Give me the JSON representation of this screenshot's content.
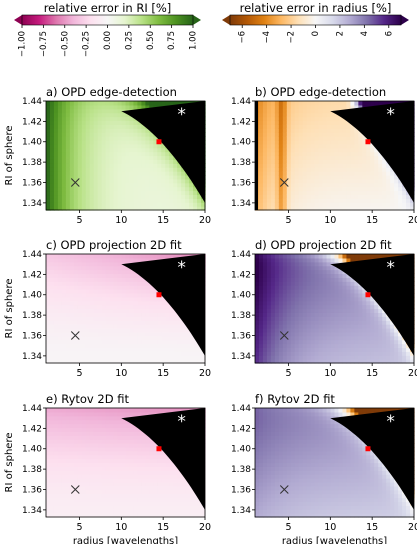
{
  "colorbars": [
    {
      "label": "relative error in RI [%]",
      "ticks": [
        "−1.00",
        "−0.75",
        "−0.50",
        "−0.25",
        "0.00",
        "0.25",
        "0.50",
        "0.75",
        "1.00"
      ],
      "range": [
        -1,
        1
      ],
      "colormap": "PiYG",
      "extend": "both"
    },
    {
      "label": "relative error in radius [%]",
      "ticks": [
        "−6",
        "−4",
        "−2",
        "0",
        "2",
        "4",
        "6"
      ],
      "range": [
        -7,
        7
      ],
      "colormap": "PuOr",
      "extend": "both"
    }
  ],
  "chart_data": [
    {
      "type": "heatmap",
      "title": "a) OPD edge-detection",
      "colormap": "PiYG",
      "xlim": [
        1,
        20
      ],
      "ylim": [
        1.333,
        1.44
      ],
      "xticks": [
        "5",
        "10",
        "15",
        "20"
      ],
      "yticks": [
        "1.34",
        "1.36",
        "1.38",
        "1.40",
        "1.42",
        "1.44"
      ],
      "ylabel": "RI of sphere",
      "xlabel": "",
      "markers": {
        "cross": [
          4.5,
          1.36
        ],
        "square": [
          14.5,
          1.4
        ],
        "star": [
          17.2,
          1.428
        ]
      }
    },
    {
      "type": "heatmap",
      "title": "b) OPD edge-detection",
      "colormap": "PuOr",
      "xlim": [
        1,
        20
      ],
      "ylim": [
        1.333,
        1.44
      ],
      "xticks": [
        "5",
        "10",
        "15",
        "20"
      ],
      "yticks": [
        "1.34",
        "1.36",
        "1.38",
        "1.40",
        "1.42",
        "1.44"
      ],
      "ylabel": "",
      "xlabel": "",
      "markers": {
        "cross": [
          4.5,
          1.36
        ],
        "square": [
          14.5,
          1.4
        ],
        "star": [
          17.2,
          1.428
        ]
      }
    },
    {
      "type": "heatmap",
      "title": "c) OPD projection 2D fit",
      "colormap": "PiYG",
      "xlim": [
        1,
        20
      ],
      "ylim": [
        1.333,
        1.44
      ],
      "xticks": [
        "5",
        "10",
        "15",
        "20"
      ],
      "yticks": [
        "1.34",
        "1.36",
        "1.38",
        "1.40",
        "1.42",
        "1.44"
      ],
      "ylabel": "RI of sphere",
      "xlabel": "",
      "markers": {
        "cross": [
          4.5,
          1.36
        ],
        "square": [
          14.5,
          1.4
        ],
        "star": [
          17.2,
          1.428
        ]
      }
    },
    {
      "type": "heatmap",
      "title": "d) OPD projection 2D fit",
      "colormap": "PuOr",
      "xlim": [
        1,
        20
      ],
      "ylim": [
        1.333,
        1.44
      ],
      "xticks": [
        "5",
        "10",
        "15",
        "20"
      ],
      "yticks": [
        "1.34",
        "1.36",
        "1.38",
        "1.40",
        "1.42",
        "1.44"
      ],
      "ylabel": "",
      "xlabel": "",
      "markers": {
        "cross": [
          4.5,
          1.36
        ],
        "square": [
          14.5,
          1.4
        ],
        "star": [
          17.2,
          1.428
        ]
      }
    },
    {
      "type": "heatmap",
      "title": "e) Rytov 2D fit",
      "colormap": "PiYG",
      "xlim": [
        1,
        20
      ],
      "ylim": [
        1.333,
        1.44
      ],
      "xticks": [
        "5",
        "10",
        "15",
        "20"
      ],
      "yticks": [
        "1.34",
        "1.36",
        "1.38",
        "1.40",
        "1.42",
        "1.44"
      ],
      "ylabel": "RI of sphere",
      "xlabel": "radius [wavelengths]",
      "markers": {
        "cross": [
          4.5,
          1.36
        ],
        "square": [
          14.5,
          1.4
        ],
        "star": [
          17.2,
          1.428
        ]
      }
    },
    {
      "type": "heatmap",
      "title": "f) Rytov 2D fit",
      "colormap": "PuOr",
      "xlim": [
        1,
        20
      ],
      "ylim": [
        1.333,
        1.44
      ],
      "xticks": [
        "5",
        "10",
        "15",
        "20"
      ],
      "yticks": [
        "1.34",
        "1.36",
        "1.38",
        "1.40",
        "1.42",
        "1.44"
      ],
      "ylabel": "",
      "xlabel": "radius [wavelengths]",
      "markers": {
        "cross": [
          4.5,
          1.36
        ],
        "square": [
          14.5,
          1.4
        ],
        "star": [
          17.2,
          1.428
        ]
      }
    }
  ]
}
